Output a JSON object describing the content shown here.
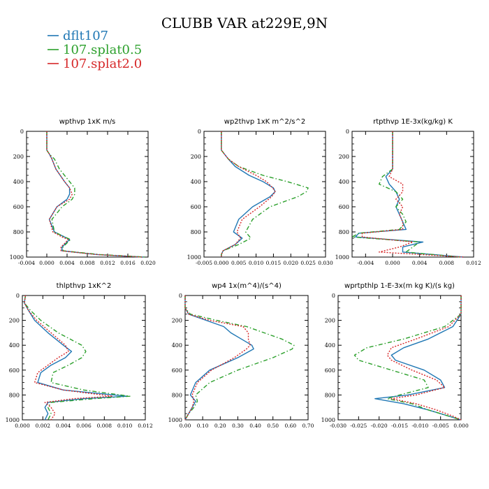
{
  "title": "CLUBB VAR at229E,9N",
  "legend": [
    {
      "name": "dflt107",
      "color": "#1f77b4",
      "dash": "solid"
    },
    {
      "name": "107.splat0.5",
      "color": "#2ca02c",
      "dash": "dashdot"
    },
    {
      "name": "107.splat2.0",
      "color": "#d62728",
      "dash": "dotted"
    }
  ],
  "chart_data": [
    {
      "type": "line",
      "title": "wpthvp   1xK m/s",
      "xlim": [
        -0.004,
        0.02
      ],
      "ylim": [
        0,
        1000
      ],
      "xticks": [
        "-0.004",
        "0.000",
        "0.004",
        "0.008",
        "0.012",
        "0.016",
        "0.020"
      ],
      "xtick_values": [
        -0.004,
        0.0,
        0.004,
        0.008,
        0.012,
        0.016,
        0.02
      ],
      "yticks": [
        "0",
        "200",
        "400",
        "600",
        "800",
        "1000"
      ],
      "ytick_values": [
        0,
        200,
        400,
        600,
        800,
        1000
      ],
      "y": [
        0,
        120,
        150,
        180,
        220,
        300,
        400,
        450,
        500,
        540,
        600,
        700,
        800,
        840,
        860,
        880,
        920,
        950,
        980,
        1000
      ],
      "series": [
        {
          "name": "dflt107",
          "values": [
            0.0,
            0.0,
            0.0,
            0.0005,
            0.001,
            0.0018,
            0.0035,
            0.0045,
            0.0045,
            0.004,
            0.002,
            0.0005,
            0.0015,
            0.0035,
            0.0045,
            0.004,
            0.003,
            0.003,
            0.01,
            0.019
          ]
        },
        {
          "name": "107.splat0.5",
          "values": [
            0.0,
            0.0,
            0.0,
            0.0005,
            0.0015,
            0.0025,
            0.0045,
            0.0055,
            0.0055,
            0.005,
            0.003,
            0.001,
            0.0015,
            0.0035,
            0.0047,
            0.0042,
            0.0032,
            0.0032,
            0.0105,
            0.0195
          ]
        },
        {
          "name": "107.splat2.0",
          "values": [
            0.0,
            0.0,
            0.0,
            0.0005,
            0.001,
            0.0018,
            0.0035,
            0.0045,
            0.005,
            0.0045,
            0.002,
            0.0005,
            0.0012,
            0.003,
            0.0042,
            0.0038,
            0.0028,
            0.0028,
            0.0098,
            0.0188
          ]
        }
      ]
    },
    {
      "type": "line",
      "title": "wp2thvp   1xK m^2/s^2",
      "xlim": [
        -0.005,
        0.03
      ],
      "ylim": [
        0,
        1000
      ],
      "xticks": [
        "-0.005",
        "0.000",
        "0.005",
        "0.010",
        "0.015",
        "0.020",
        "0.025",
        "0.030"
      ],
      "xtick_values": [
        -0.005,
        0.0,
        0.005,
        0.01,
        0.015,
        0.02,
        0.025,
        0.03
      ],
      "yticks": [
        "0",
        "200",
        "400",
        "600",
        "800",
        "1000"
      ],
      "ytick_values": [
        0,
        200,
        400,
        600,
        800,
        1000
      ],
      "y": [
        0,
        150,
        220,
        280,
        350,
        400,
        450,
        480,
        520,
        600,
        700,
        800,
        850,
        900,
        950,
        980,
        1000
      ],
      "series": [
        {
          "name": "dflt107",
          "values": [
            0.0,
            0.0,
            0.002,
            0.004,
            0.008,
            0.012,
            0.015,
            0.0155,
            0.014,
            0.009,
            0.005,
            0.0035,
            0.006,
            0.004,
            0.0005,
            0.0,
            0.0
          ]
        },
        {
          "name": "107.splat0.5",
          "values": [
            0.0,
            0.0,
            0.002,
            0.005,
            0.012,
            0.019,
            0.025,
            0.0245,
            0.022,
            0.014,
            0.009,
            0.007,
            0.0085,
            0.005,
            0.0005,
            0.0,
            0.0
          ]
        },
        {
          "name": "107.splat2.0",
          "values": [
            0.0,
            0.0,
            0.002,
            0.005,
            0.01,
            0.013,
            0.0148,
            0.0155,
            0.0145,
            0.011,
            0.006,
            0.0045,
            0.0055,
            0.004,
            0.0005,
            0.0,
            0.0
          ]
        }
      ]
    },
    {
      "type": "line",
      "title": "rtpthvp   1E-3x(kg/kg) K",
      "xlim": [
        -0.006,
        0.012
      ],
      "ylim": [
        0,
        1000
      ],
      "xticks": [
        "-0.004",
        "0.000",
        "0.004",
        "0.008",
        "0.012"
      ],
      "xtick_values": [
        -0.004,
        0.0,
        0.004,
        0.008,
        0.012
      ],
      "yticks": [
        "0",
        "200",
        "400",
        "600",
        "800",
        "1000"
      ],
      "ytick_values": [
        0,
        200,
        400,
        600,
        800,
        1000
      ],
      "y": [
        0,
        300,
        360,
        420,
        480,
        540,
        600,
        660,
        720,
        780,
        810,
        840,
        880,
        920,
        960,
        1000
      ],
      "series": [
        {
          "name": "dflt107",
          "values": [
            0.0,
            0.0,
            -0.001,
            -0.0005,
            0.0005,
            0.001,
            0.0005,
            0.001,
            0.0015,
            0.002,
            -0.005,
            -0.0055,
            0.0045,
            0.0015,
            0.0015,
            0.0105
          ]
        },
        {
          "name": "107.splat0.5",
          "values": [
            0.0,
            0.0,
            -0.0015,
            -0.002,
            0.0005,
            0.0015,
            0.0005,
            0.0015,
            0.002,
            0.001,
            -0.005,
            -0.006,
            0.004,
            0.003,
            0.002,
            0.01
          ]
        },
        {
          "name": "107.splat2.0",
          "values": [
            0.0,
            0.0,
            -0.0005,
            0.0015,
            0.0015,
            0.0005,
            0.0015,
            0.001,
            0.0015,
            0.0015,
            -0.0045,
            -0.0045,
            0.003,
            0.001,
            -0.002,
            0.0105
          ]
        }
      ]
    },
    {
      "type": "line",
      "title": "thlpthvp   1xK^2",
      "xlim": [
        0.0,
        0.012
      ],
      "ylim": [
        0,
        1000
      ],
      "xticks": [
        "0.000",
        "0.002",
        "0.004",
        "0.006",
        "0.008",
        "0.010",
        "0.012"
      ],
      "xtick_values": [
        0.0,
        0.002,
        0.004,
        0.006,
        0.008,
        0.01,
        0.012
      ],
      "yticks": [
        "0",
        "200",
        "400",
        "600",
        "800",
        "1000"
      ],
      "ytick_values": [
        0,
        200,
        400,
        600,
        800,
        1000
      ],
      "y": [
        0,
        60,
        120,
        200,
        300,
        400,
        450,
        500,
        560,
        620,
        700,
        760,
        810,
        830,
        860,
        900,
        950,
        1000
      ],
      "series": [
        {
          "name": "dflt107",
          "values": [
            0.0003,
            0.0002,
            0.0006,
            0.0012,
            0.0025,
            0.004,
            0.0048,
            0.0042,
            0.0028,
            0.0018,
            0.0015,
            0.004,
            0.0102,
            0.006,
            0.0025,
            0.0022,
            0.0025,
            0.0022
          ]
        },
        {
          "name": "107.splat0.5",
          "values": [
            0.0003,
            0.0002,
            0.0008,
            0.0018,
            0.0035,
            0.0058,
            0.0062,
            0.0058,
            0.0045,
            0.003,
            0.0028,
            0.006,
            0.0105,
            0.007,
            0.0028,
            0.0025,
            0.0028,
            0.0025
          ]
        },
        {
          "name": "107.splat2.0",
          "values": [
            0.0003,
            0.0002,
            0.0006,
            0.0014,
            0.0028,
            0.0042,
            0.0045,
            0.0035,
            0.0025,
            0.0015,
            0.0012,
            0.004,
            0.0088,
            0.005,
            0.0022,
            0.0028,
            0.0032,
            0.0028
          ]
        }
      ]
    },
    {
      "type": "line",
      "title": "wp4   1x(m^4)/(s^4)",
      "xlim": [
        0.0,
        0.7
      ],
      "ylim": [
        0,
        1000
      ],
      "xticks": [
        "0.00",
        "0.10",
        "0.20",
        "0.30",
        "0.40",
        "0.50",
        "0.60",
        "0.70"
      ],
      "xtick_values": [
        0.0,
        0.1,
        0.2,
        0.3,
        0.4,
        0.5,
        0.6,
        0.7
      ],
      "yticks": [
        "0",
        "200",
        "400",
        "600",
        "800",
        "1000"
      ],
      "ytick_values": [
        0,
        200,
        400,
        600,
        800,
        1000
      ],
      "y": [
        0,
        100,
        150,
        200,
        250,
        300,
        350,
        400,
        430,
        500,
        600,
        700,
        800,
        850,
        900,
        950,
        1000
      ],
      "series": [
        {
          "name": "dflt107",
          "values": [
            0.0,
            0.0,
            0.02,
            0.12,
            0.22,
            0.26,
            0.32,
            0.38,
            0.39,
            0.3,
            0.14,
            0.06,
            0.03,
            0.06,
            0.04,
            0.02,
            0.0
          ]
        },
        {
          "name": "107.splat0.5",
          "values": [
            0.0,
            0.0,
            0.03,
            0.18,
            0.35,
            0.45,
            0.55,
            0.62,
            0.61,
            0.5,
            0.3,
            0.14,
            0.06,
            0.07,
            0.05,
            0.02,
            0.0
          ]
        },
        {
          "name": "107.splat2.0",
          "values": [
            0.0,
            0.0,
            0.02,
            0.14,
            0.33,
            0.36,
            0.36,
            0.37,
            0.35,
            0.28,
            0.15,
            0.07,
            0.04,
            0.05,
            0.04,
            0.02,
            0.0
          ]
        }
      ]
    },
    {
      "type": "line",
      "title": "wprtpthlp   1-E-3x(m kg K)/(s kg)",
      "xlim": [
        -0.03,
        0.0
      ],
      "ylim": [
        0,
        1000
      ],
      "xticks": [
        "-0.030",
        "-0.025",
        "-0.020",
        "-0.015",
        "-0.010",
        "-0.005",
        "0.000"
      ],
      "xtick_values": [
        -0.03,
        -0.025,
        -0.02,
        -0.015,
        -0.01,
        -0.005,
        0.0
      ],
      "yticks": [
        "0",
        "200",
        "400",
        "600",
        "800",
        "1000"
      ],
      "ytick_values": [
        0,
        200,
        400,
        600,
        800,
        1000
      ],
      "y": [
        0,
        150,
        250,
        350,
        420,
        480,
        520,
        600,
        680,
        740,
        800,
        830,
        870,
        920,
        970,
        1000
      ],
      "series": [
        {
          "name": "dflt107",
          "values": [
            0.0,
            0.0,
            -0.002,
            -0.008,
            -0.014,
            -0.017,
            -0.016,
            -0.009,
            -0.005,
            -0.004,
            -0.013,
            -0.021,
            -0.014,
            -0.008,
            -0.003,
            0.0
          ]
        },
        {
          "name": "107.splat0.5",
          "values": [
            0.0,
            0.0,
            -0.004,
            -0.014,
            -0.023,
            -0.026,
            -0.025,
            -0.017,
            -0.009,
            -0.008,
            -0.015,
            -0.018,
            -0.012,
            -0.008,
            -0.003,
            0.0
          ]
        },
        {
          "name": "107.splat2.0",
          "values": [
            0.0,
            0.0,
            -0.003,
            -0.011,
            -0.017,
            -0.018,
            -0.017,
            -0.012,
            -0.006,
            -0.004,
            -0.011,
            -0.017,
            -0.011,
            -0.006,
            -0.002,
            0.0
          ]
        }
      ]
    }
  ]
}
